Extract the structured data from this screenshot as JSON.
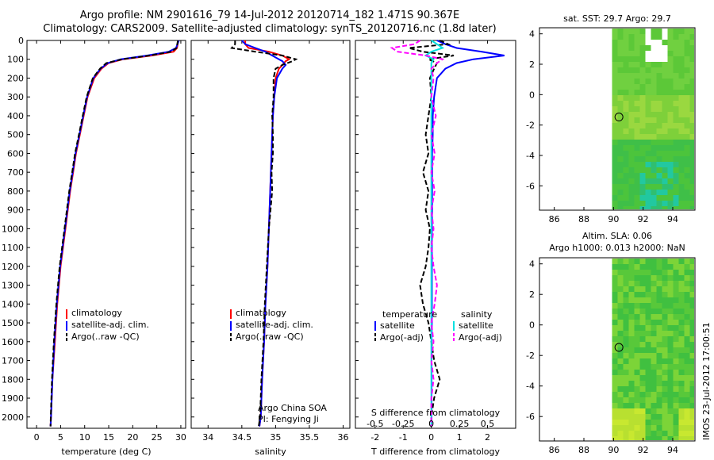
{
  "header": {
    "title_line1": "Argo profile: NM 2901616_79 14-Jul-2012 20120714_182 1.471S 90.367E",
    "title_line2": "Climatology: CARS2009. Satellite-adjusted climatology: synTS_20120716.nc (1.8d later)"
  },
  "timestamp": "IMOS 23-Jul-2012 17:00:51",
  "colors": {
    "climatology": "#ff0000",
    "satellite": "#0000ff",
    "argo": "#000000",
    "sal_satellite": "#00e0e0",
    "sal_argo": "#ff00ff"
  },
  "chart_data": [
    {
      "id": "temperature",
      "type": "line",
      "xlabel": "temperature (deg C)",
      "ylabel": "",
      "xlim": [
        -2,
        31
      ],
      "ylim": [
        2060,
        0
      ],
      "xticks": [
        "0",
        "5",
        "10",
        "15",
        "20",
        "25",
        "30"
      ],
      "yticks": [
        "0",
        "100",
        "200",
        "300",
        "400",
        "500",
        "600",
        "700",
        "800",
        "900",
        "1000",
        "1100",
        "1200",
        "1300",
        "1400",
        "1500",
        "1600",
        "1700",
        "1800",
        "1900",
        "2000"
      ],
      "depth": [
        0,
        40,
        60,
        80,
        100,
        120,
        150,
        200,
        300,
        400,
        500,
        600,
        700,
        800,
        900,
        1000,
        1200,
        1400,
        1600,
        1800,
        2000,
        2050
      ],
      "series": [
        {
          "name": "climatology",
          "values": [
            29.5,
            29.2,
            28.5,
            24,
            18,
            15,
            13.5,
            12,
            10.6,
            9.8,
            9.0,
            8.2,
            7.6,
            7.0,
            6.5,
            6.0,
            5.0,
            4.3,
            3.8,
            3.3,
            3.0,
            2.9
          ]
        },
        {
          "name": "satellite-adj. clim.",
          "values": [
            29.6,
            29.0,
            27.5,
            23,
            17.5,
            14.8,
            13.3,
            11.8,
            10.5,
            9.7,
            8.9,
            8.1,
            7.5,
            6.9,
            6.4,
            5.9,
            4.9,
            4.2,
            3.7,
            3.3,
            3.0,
            2.9
          ]
        },
        {
          "name": "Argo(..raw -QC)",
          "values": [
            29.4,
            29.1,
            28,
            23.5,
            17.8,
            14.5,
            13.2,
            11.7,
            10.4,
            9.6,
            8.8,
            8.0,
            7.4,
            6.8,
            6.3,
            5.8,
            4.8,
            4.1,
            3.6,
            3.2,
            2.95,
            2.9
          ]
        }
      ],
      "legend": {
        "items": [
          "climatology",
          "satellite-adj. clim.",
          "Argo(..raw -QC)"
        ],
        "position": "bottom-center"
      }
    },
    {
      "id": "salinity",
      "type": "line",
      "xlabel": "salinity",
      "xlim": [
        33.75,
        36.1
      ],
      "ylim": [
        2060,
        0
      ],
      "xticks": [
        "34",
        "34.5",
        "35",
        "35.5",
        "36"
      ],
      "depth": [
        0,
        20,
        40,
        60,
        80,
        100,
        110,
        130,
        150,
        200,
        300,
        400,
        500,
        600,
        700,
        800,
        1000,
        1200,
        1400,
        1600,
        1800,
        2000,
        2050
      ],
      "series": [
        {
          "name": "climatology",
          "values": [
            34.55,
            34.55,
            34.6,
            34.9,
            35.1,
            35.2,
            35.15,
            35.1,
            35.05,
            35.0,
            34.98,
            34.96,
            34.95,
            34.94,
            34.93,
            34.92,
            34.9,
            34.88,
            34.85,
            34.83,
            34.8,
            34.78,
            34.76
          ]
        },
        {
          "name": "satellite-adj. clim.",
          "values": [
            34.5,
            34.55,
            34.7,
            34.85,
            34.95,
            35.05,
            35.1,
            35.15,
            35.1,
            35.02,
            34.98,
            34.96,
            34.95,
            34.94,
            34.93,
            34.92,
            34.9,
            34.88,
            34.85,
            34.83,
            34.8,
            34.78,
            34.76
          ]
        },
        {
          "name": "Argo(..raw -QC)",
          "values": [
            34.4,
            34.4,
            34.35,
            34.7,
            35.1,
            35.3,
            35.25,
            35.1,
            35.0,
            34.97,
            34.97,
            34.95,
            34.96,
            34.96,
            34.94,
            34.95,
            34.9,
            34.87,
            34.84,
            34.82,
            34.79,
            34.77,
            34.75
          ]
        }
      ],
      "legend": {
        "items": [
          "climatology",
          "satellite-adj. clim.",
          "Argo(..raw -QC)"
        ],
        "position": "bottom-center"
      },
      "annotation": {
        "line1": "Argo China SOA",
        "line2": "PI: Fengying Ji"
      }
    },
    {
      "id": "difference",
      "type": "line",
      "xlabel": "T difference from climatology",
      "top_xlabel": "S difference from climatology",
      "xlim": [
        -2.7,
        3.0
      ],
      "ylim": [
        2060,
        0
      ],
      "xticks": [
        "-2",
        "-1",
        "0",
        "1",
        "2"
      ],
      "top_xticks": [
        "-0.5",
        "-0.25",
        "0",
        "0.25",
        "0.5"
      ],
      "depth": [
        0,
        20,
        40,
        60,
        80,
        100,
        120,
        150,
        200,
        300,
        400,
        500,
        600,
        700,
        800,
        900,
        1000,
        1100,
        1200,
        1300,
        1400,
        1500,
        1600,
        1700,
        1800,
        1900,
        2000,
        2050
      ],
      "series": [
        {
          "name": "temperature satellite",
          "values": [
            0.2,
            0.5,
            0.9,
            1.8,
            2.6,
            1.5,
            0.9,
            0.5,
            0.2,
            0.1,
            0.05,
            0.05,
            0.03,
            0.03,
            0.03,
            0.03,
            0.02,
            0.02,
            0.02,
            0.02,
            0.02,
            0.02,
            0.01,
            0.01,
            0.01,
            0.01,
            0.01,
            0.0
          ]
        },
        {
          "name": "temperature Argo(-adj)",
          "values": [
            0.3,
            0.6,
            -0.8,
            -0.3,
            0.8,
            -0.1,
            0.2,
            0.1,
            -0.05,
            0.0,
            -0.1,
            -0.2,
            -0.1,
            -0.3,
            -0.1,
            -0.2,
            -0.05,
            -0.1,
            -0.2,
            -0.4,
            -0.3,
            -0.1,
            0.0,
            0.1,
            0.3,
            0.1,
            0.0,
            0.0
          ]
        },
        {
          "name": "salinity satellite",
          "values": [
            0.0,
            0.05,
            0.1,
            0.0,
            -0.05,
            0.02,
            0.0,
            0.0,
            0.0,
            0.0,
            0.0,
            0.0,
            0.0,
            0.0,
            0.0,
            0.0,
            0.0,
            0.0,
            0.0,
            0.0,
            0.0,
            0.0,
            0.0,
            0.0,
            0.0,
            0.0,
            0.0,
            0.0
          ]
        },
        {
          "name": "salinity Argo(-adj)",
          "values": [
            -0.1,
            -0.15,
            -0.35,
            -0.3,
            -0.05,
            0.1,
            0.05,
            0.0,
            0.02,
            0.0,
            0.04,
            0.0,
            0.03,
            0.0,
            0.03,
            0.0,
            0.02,
            0.0,
            0.02,
            0.05,
            0.03,
            0.0,
            0.02,
            0.0,
            0.02,
            0.0,
            0.0,
            0.0
          ]
        }
      ],
      "legend": {
        "col1_title": "temperature",
        "col2_title": "salinity",
        "items": [
          "satellite",
          "Argo(-adj)",
          "satellite",
          "Argo(-adj)"
        ],
        "position": "bottom-center"
      }
    },
    {
      "id": "sst_map",
      "type": "heatmap",
      "title": "sat. SST: 29.7 Argo: 29.7",
      "xlim": [
        85,
        95.5
      ],
      "ylim": [
        -7.6,
        4.4
      ],
      "xticks": [
        "86",
        "88",
        "90",
        "92",
        "94"
      ],
      "yticks": [
        "4",
        "2",
        "0",
        "-2",
        "-4",
        "-6"
      ],
      "data_lon_min": 89.9,
      "argo_position": {
        "lon": 90.367,
        "lat": -1.471
      }
    },
    {
      "id": "sla_map",
      "type": "heatmap",
      "title_line1": "Altim. SLA: 0.06",
      "title_line2": "Argo h1000: 0.013 h2000: NaN",
      "xlim": [
        85,
        95.5
      ],
      "ylim": [
        -7.6,
        4.4
      ],
      "xticks": [
        "86",
        "88",
        "90",
        "92",
        "94"
      ],
      "yticks": [
        "4",
        "2",
        "0",
        "-2",
        "-4",
        "-6"
      ],
      "data_lon_min": 89.9,
      "argo_position": {
        "lon": 90.367,
        "lat": -1.471
      }
    }
  ]
}
